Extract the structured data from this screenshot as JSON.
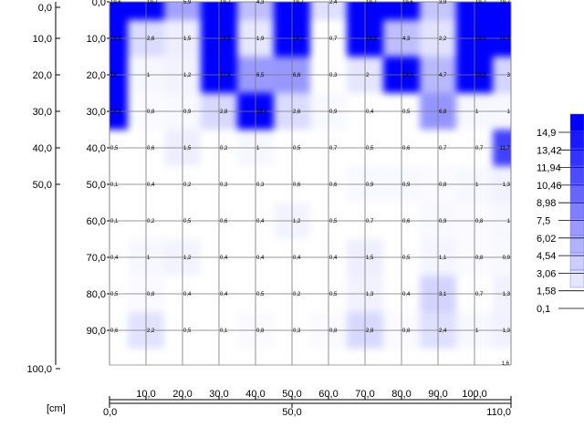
{
  "chart_data": {
    "type": "heatmap",
    "x_unit": "[cm]",
    "x_ticks_top": [
      "10,0",
      "20,0",
      "30,0",
      "40,0",
      "50,0",
      "60,0",
      "70,0",
      "80,0",
      "90,0",
      "100,0"
    ],
    "x_ticks_bottom": [
      "0,0",
      "50,0",
      "110,0"
    ],
    "y_ticks_left": [
      "0,0",
      "10,0",
      "20,0",
      "30,0",
      "40,0",
      "50,0",
      "100,0"
    ],
    "y_ticks_inner": [
      "0,0",
      "10,0",
      "20,0",
      "30,0",
      "40,0",
      "50,0",
      "60,0",
      "70,0",
      "80,0",
      "90,0"
    ],
    "x_values": [
      0,
      10,
      20,
      30,
      40,
      50,
      60,
      70,
      80,
      90,
      100,
      110
    ],
    "y_values": [
      0,
      10,
      20,
      30,
      40,
      50,
      60,
      70,
      80,
      90
    ],
    "values": [
      [
        "19,6",
        "19,7",
        "5,9",
        "19,7",
        "4,3",
        "19,7",
        "2,4",
        "19,7",
        "19,6",
        "3,9",
        "19,7",
        "19,7"
      ],
      [
        "19,6",
        "2,6",
        "1,5",
        "19,6",
        "1,9",
        "19,7",
        "0,7",
        "19,6",
        "4,3",
        "2,2",
        "19,6",
        "19,5"
      ],
      [
        "19",
        "1",
        "1,2",
        "17,4",
        "6,5",
        "6,6",
        "0,3",
        "2",
        "19,5",
        "4,7",
        "19,6",
        "3"
      ],
      [
        "18,5",
        "0,8",
        "0,9",
        "2,8",
        "18,4",
        "2,6",
        "0,9",
        "0,4",
        "0,5",
        "6,8",
        "1",
        "1"
      ],
      [
        "0,5",
        "0,6",
        "1,5",
        "0,2",
        "1",
        "0,5",
        "0,7",
        "0,5",
        "0,6",
        "0,7",
        "0,7",
        "11,7"
      ],
      [
        "0,1",
        "0,4",
        "0,2",
        "0,3",
        "0,3",
        "0,6",
        "0,6",
        "0,9",
        "0,9",
        "0,8",
        "1",
        "1,3"
      ],
      [
        "0,1",
        "0,2",
        "0,5",
        "0,6",
        "0,4",
        "1,2",
        "0,5",
        "0,7",
        "0,6",
        "0,9",
        "0,8",
        "1"
      ],
      [
        "0,4",
        "1",
        "1,2",
        "0,4",
        "0,4",
        "0,4",
        "0,4",
        "1,5",
        "0,5",
        "1,1",
        "0,8",
        "0,9"
      ],
      [
        "0,5",
        "0,8",
        "0,4",
        "0,4",
        "0,5",
        "0,2",
        "0,5",
        "1,3",
        "0,4",
        "3,1",
        "0,7",
        "1,3"
      ],
      [
        "0,6",
        "2,2",
        "0,5",
        "0,1",
        "0,8",
        "0,3",
        "0,8",
        "2,8",
        "0,8",
        "2,4",
        "1",
        "1,3"
      ]
    ],
    "extra_value": "1,6",
    "legend_levels": [
      "14,9",
      "13,42",
      "11,94",
      "10,46",
      "8,98",
      "7,5",
      "6,02",
      "4,54",
      "3,06",
      "1,58",
      "0,1"
    ],
    "colors": {
      "max": "#0000ff",
      "min": "#ffffff",
      "grid": "#777777",
      "axis": "#000000"
    }
  }
}
